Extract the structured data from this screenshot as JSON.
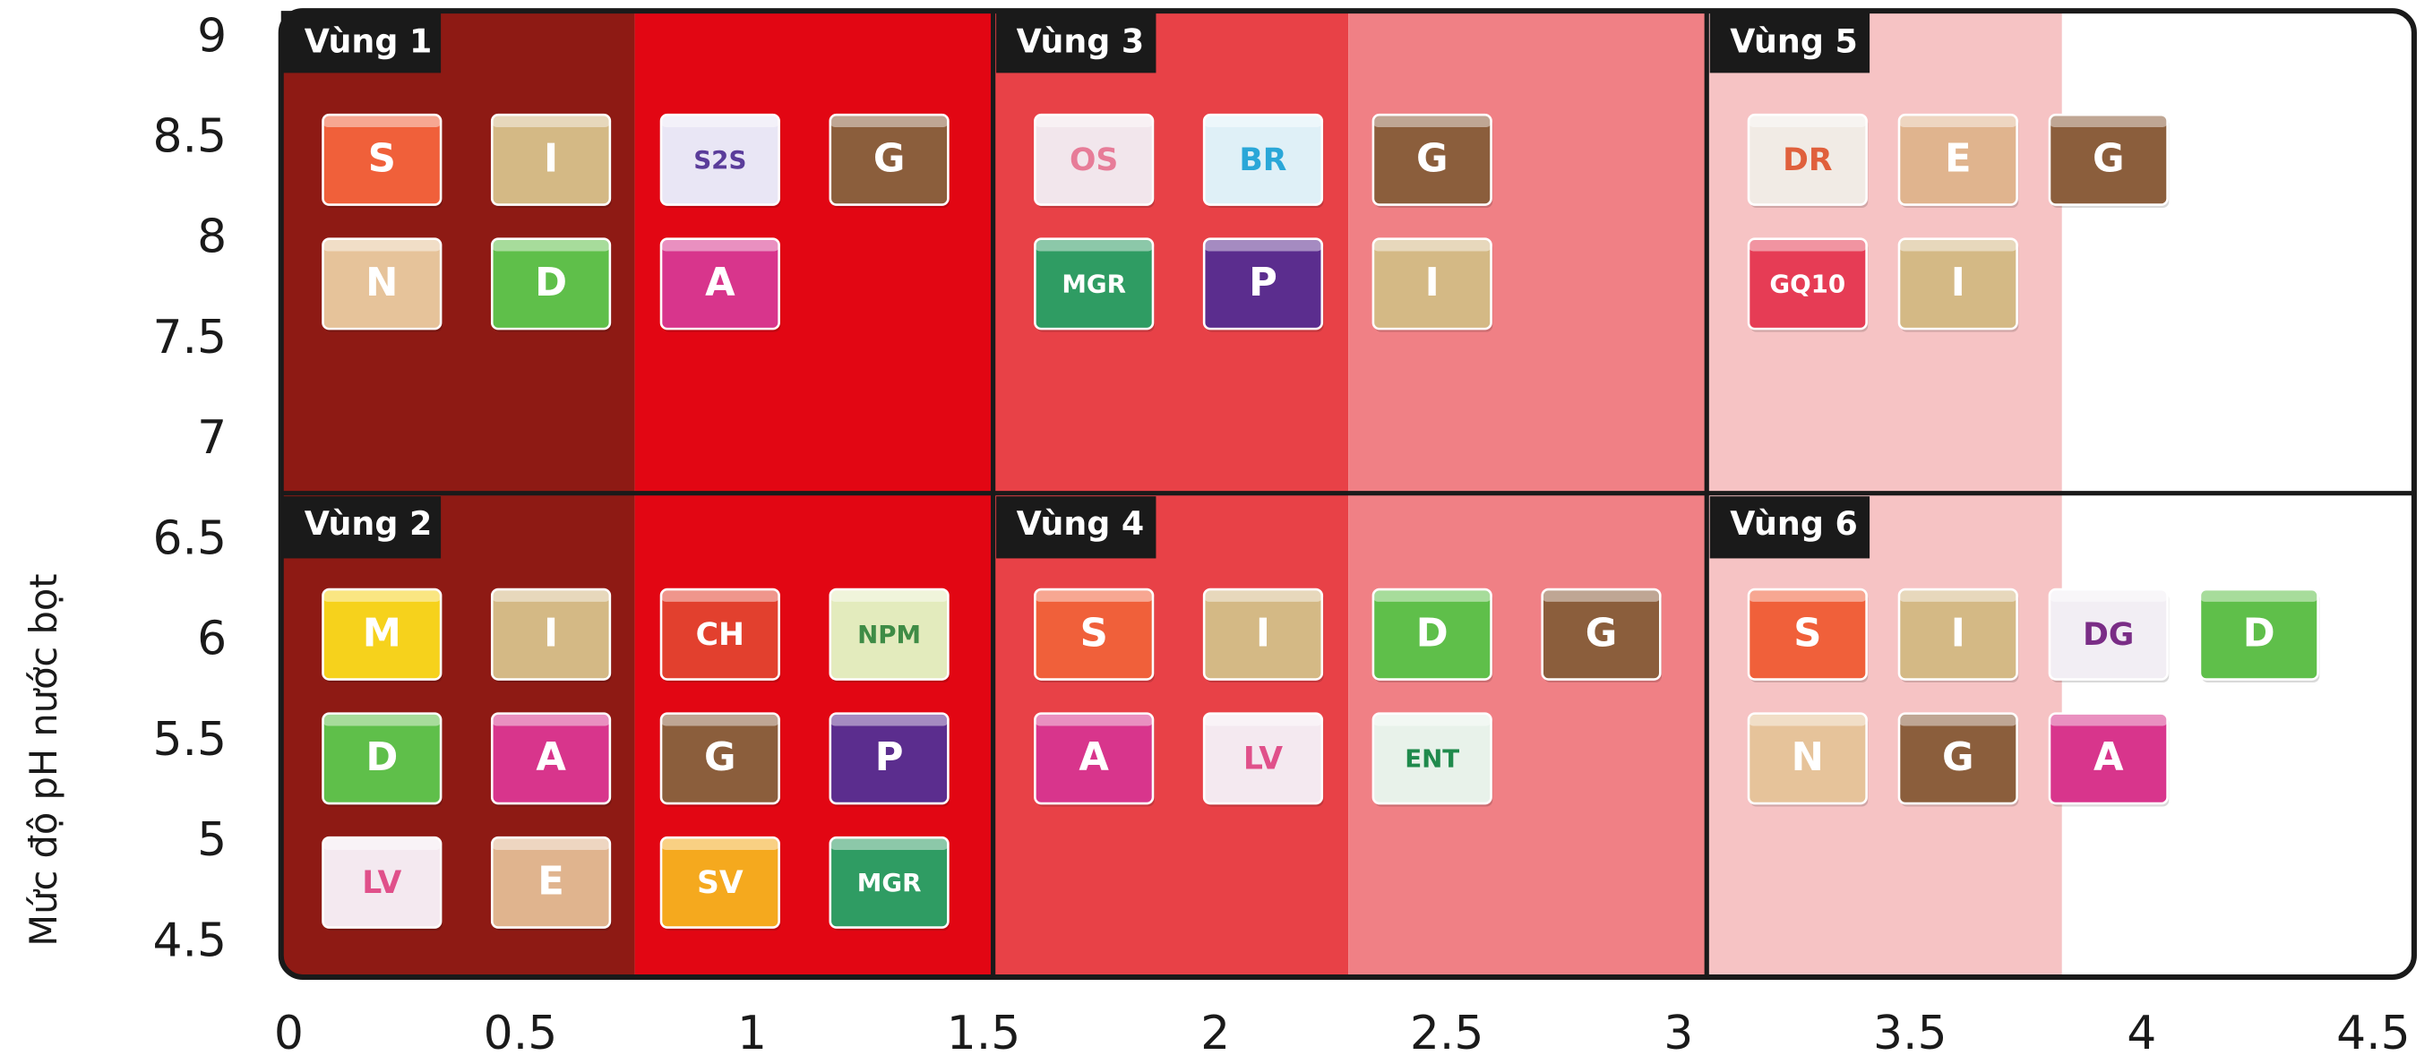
{
  "y_axis_label": "Mức độ pH nước bọt",
  "yticks": [
    "9",
    "8.5",
    "8",
    "7.5",
    "7",
    "6.5",
    "6",
    "5.5",
    "5",
    "4.5"
  ],
  "xticks": [
    "0",
    "0.5",
    "1",
    "1.5",
    "2",
    "2.5",
    "3",
    "3.5",
    "4",
    "4.5"
  ],
  "zones": [
    {
      "label": "Vùng 1",
      "rows": [
        [
          {
            "code": "S",
            "color": "#f0603a",
            "ink": "#ffffff"
          },
          {
            "code": "I",
            "color": "#d4b985",
            "ink": "#ffffff"
          },
          {
            "code": "S2S",
            "color": "#e9e6f5",
            "ink": "#5a3c9a"
          },
          {
            "code": "G",
            "color": "#8b5e3c",
            "ink": "#ffffff"
          }
        ],
        [
          {
            "code": "N",
            "color": "#e6c39a",
            "ink": "#ffffff"
          },
          {
            "code": "D",
            "color": "#5fbf4a",
            "ink": "#ffffff"
          },
          {
            "code": "A",
            "color": "#d8358c",
            "ink": "#ffffff"
          }
        ]
      ]
    },
    {
      "label": "Vùng 2",
      "rows": [
        [
          {
            "code": "M",
            "color": "#f6d21c",
            "ink": "#ffffff"
          },
          {
            "code": "I",
            "color": "#d4b985",
            "ink": "#ffffff"
          },
          {
            "code": "CH",
            "color": "#e2402e",
            "ink": "#ffffff"
          },
          {
            "code": "NPM",
            "color": "#e3ebbd",
            "ink": "#3f8c46"
          }
        ],
        [
          {
            "code": "D",
            "color": "#5fbf4a",
            "ink": "#ffffff"
          },
          {
            "code": "A",
            "color": "#d8358c",
            "ink": "#ffffff"
          },
          {
            "code": "G",
            "color": "#8b5e3c",
            "ink": "#ffffff"
          },
          {
            "code": "P",
            "color": "#5b2d8e",
            "ink": "#ffffff"
          }
        ],
        [
          {
            "code": "LV",
            "color": "#f4e9f0",
            "ink": "#e0508a"
          },
          {
            "code": "E",
            "color": "#e0b48e",
            "ink": "#ffffff"
          },
          {
            "code": "SV",
            "color": "#f5a91e",
            "ink": "#ffffff"
          },
          {
            "code": "MGR",
            "color": "#2f9c63",
            "ink": "#ffffff"
          }
        ]
      ]
    },
    {
      "label": "Vùng 3",
      "rows": [
        [
          {
            "code": "OS",
            "color": "#f2e6ec",
            "ink": "#e77c98"
          },
          {
            "code": "BR",
            "color": "#dff0f7",
            "ink": "#2aa7d8"
          },
          {
            "code": "G",
            "color": "#8b5e3c",
            "ink": "#ffffff"
          }
        ],
        [
          {
            "code": "MGR",
            "color": "#2f9c63",
            "ink": "#ffffff"
          },
          {
            "code": "P",
            "color": "#5b2d8e",
            "ink": "#ffffff"
          },
          {
            "code": "I",
            "color": "#d4b985",
            "ink": "#ffffff"
          }
        ]
      ]
    },
    {
      "label": "Vùng 4",
      "rows": [
        [
          {
            "code": "S",
            "color": "#f0603a",
            "ink": "#ffffff"
          },
          {
            "code": "I",
            "color": "#d4b985",
            "ink": "#ffffff"
          },
          {
            "code": "D",
            "color": "#5fbf4a",
            "ink": "#ffffff"
          },
          {
            "code": "G",
            "color": "#8b5e3c",
            "ink": "#ffffff"
          }
        ],
        [
          {
            "code": "A",
            "color": "#d8358c",
            "ink": "#ffffff"
          },
          {
            "code": "LV",
            "color": "#f4e9f0",
            "ink": "#e0508a"
          },
          {
            "code": "ENT",
            "color": "#e8f2ea",
            "ink": "#1f8a4c"
          }
        ]
      ]
    },
    {
      "label": "Vùng 5",
      "rows": [
        [
          {
            "code": "DR",
            "color": "#f1ebe5",
            "ink": "#e0603c"
          },
          {
            "code": "E",
            "color": "#e0b48e",
            "ink": "#ffffff"
          },
          {
            "code": "G",
            "color": "#8b5e3c",
            "ink": "#ffffff"
          }
        ],
        [
          {
            "code": "GQ10",
            "color": "#e63c55",
            "ink": "#ffffff"
          },
          {
            "code": "I",
            "color": "#d4b985",
            "ink": "#ffffff"
          }
        ]
      ]
    },
    {
      "label": "Vùng 6",
      "rows": [
        [
          {
            "code": "S",
            "color": "#f0603a",
            "ink": "#ffffff"
          },
          {
            "code": "I",
            "color": "#d4b985",
            "ink": "#ffffff"
          },
          {
            "code": "DG",
            "color": "#f2eef4",
            "ink": "#7a2d86"
          },
          {
            "code": "D",
            "color": "#5fbf4a",
            "ink": "#ffffff"
          }
        ],
        [
          {
            "code": "N",
            "color": "#e6c39a",
            "ink": "#ffffff"
          },
          {
            "code": "G",
            "color": "#8b5e3c",
            "ink": "#ffffff"
          },
          {
            "code": "A",
            "color": "#d8358c",
            "ink": "#ffffff"
          }
        ]
      ]
    }
  ]
}
